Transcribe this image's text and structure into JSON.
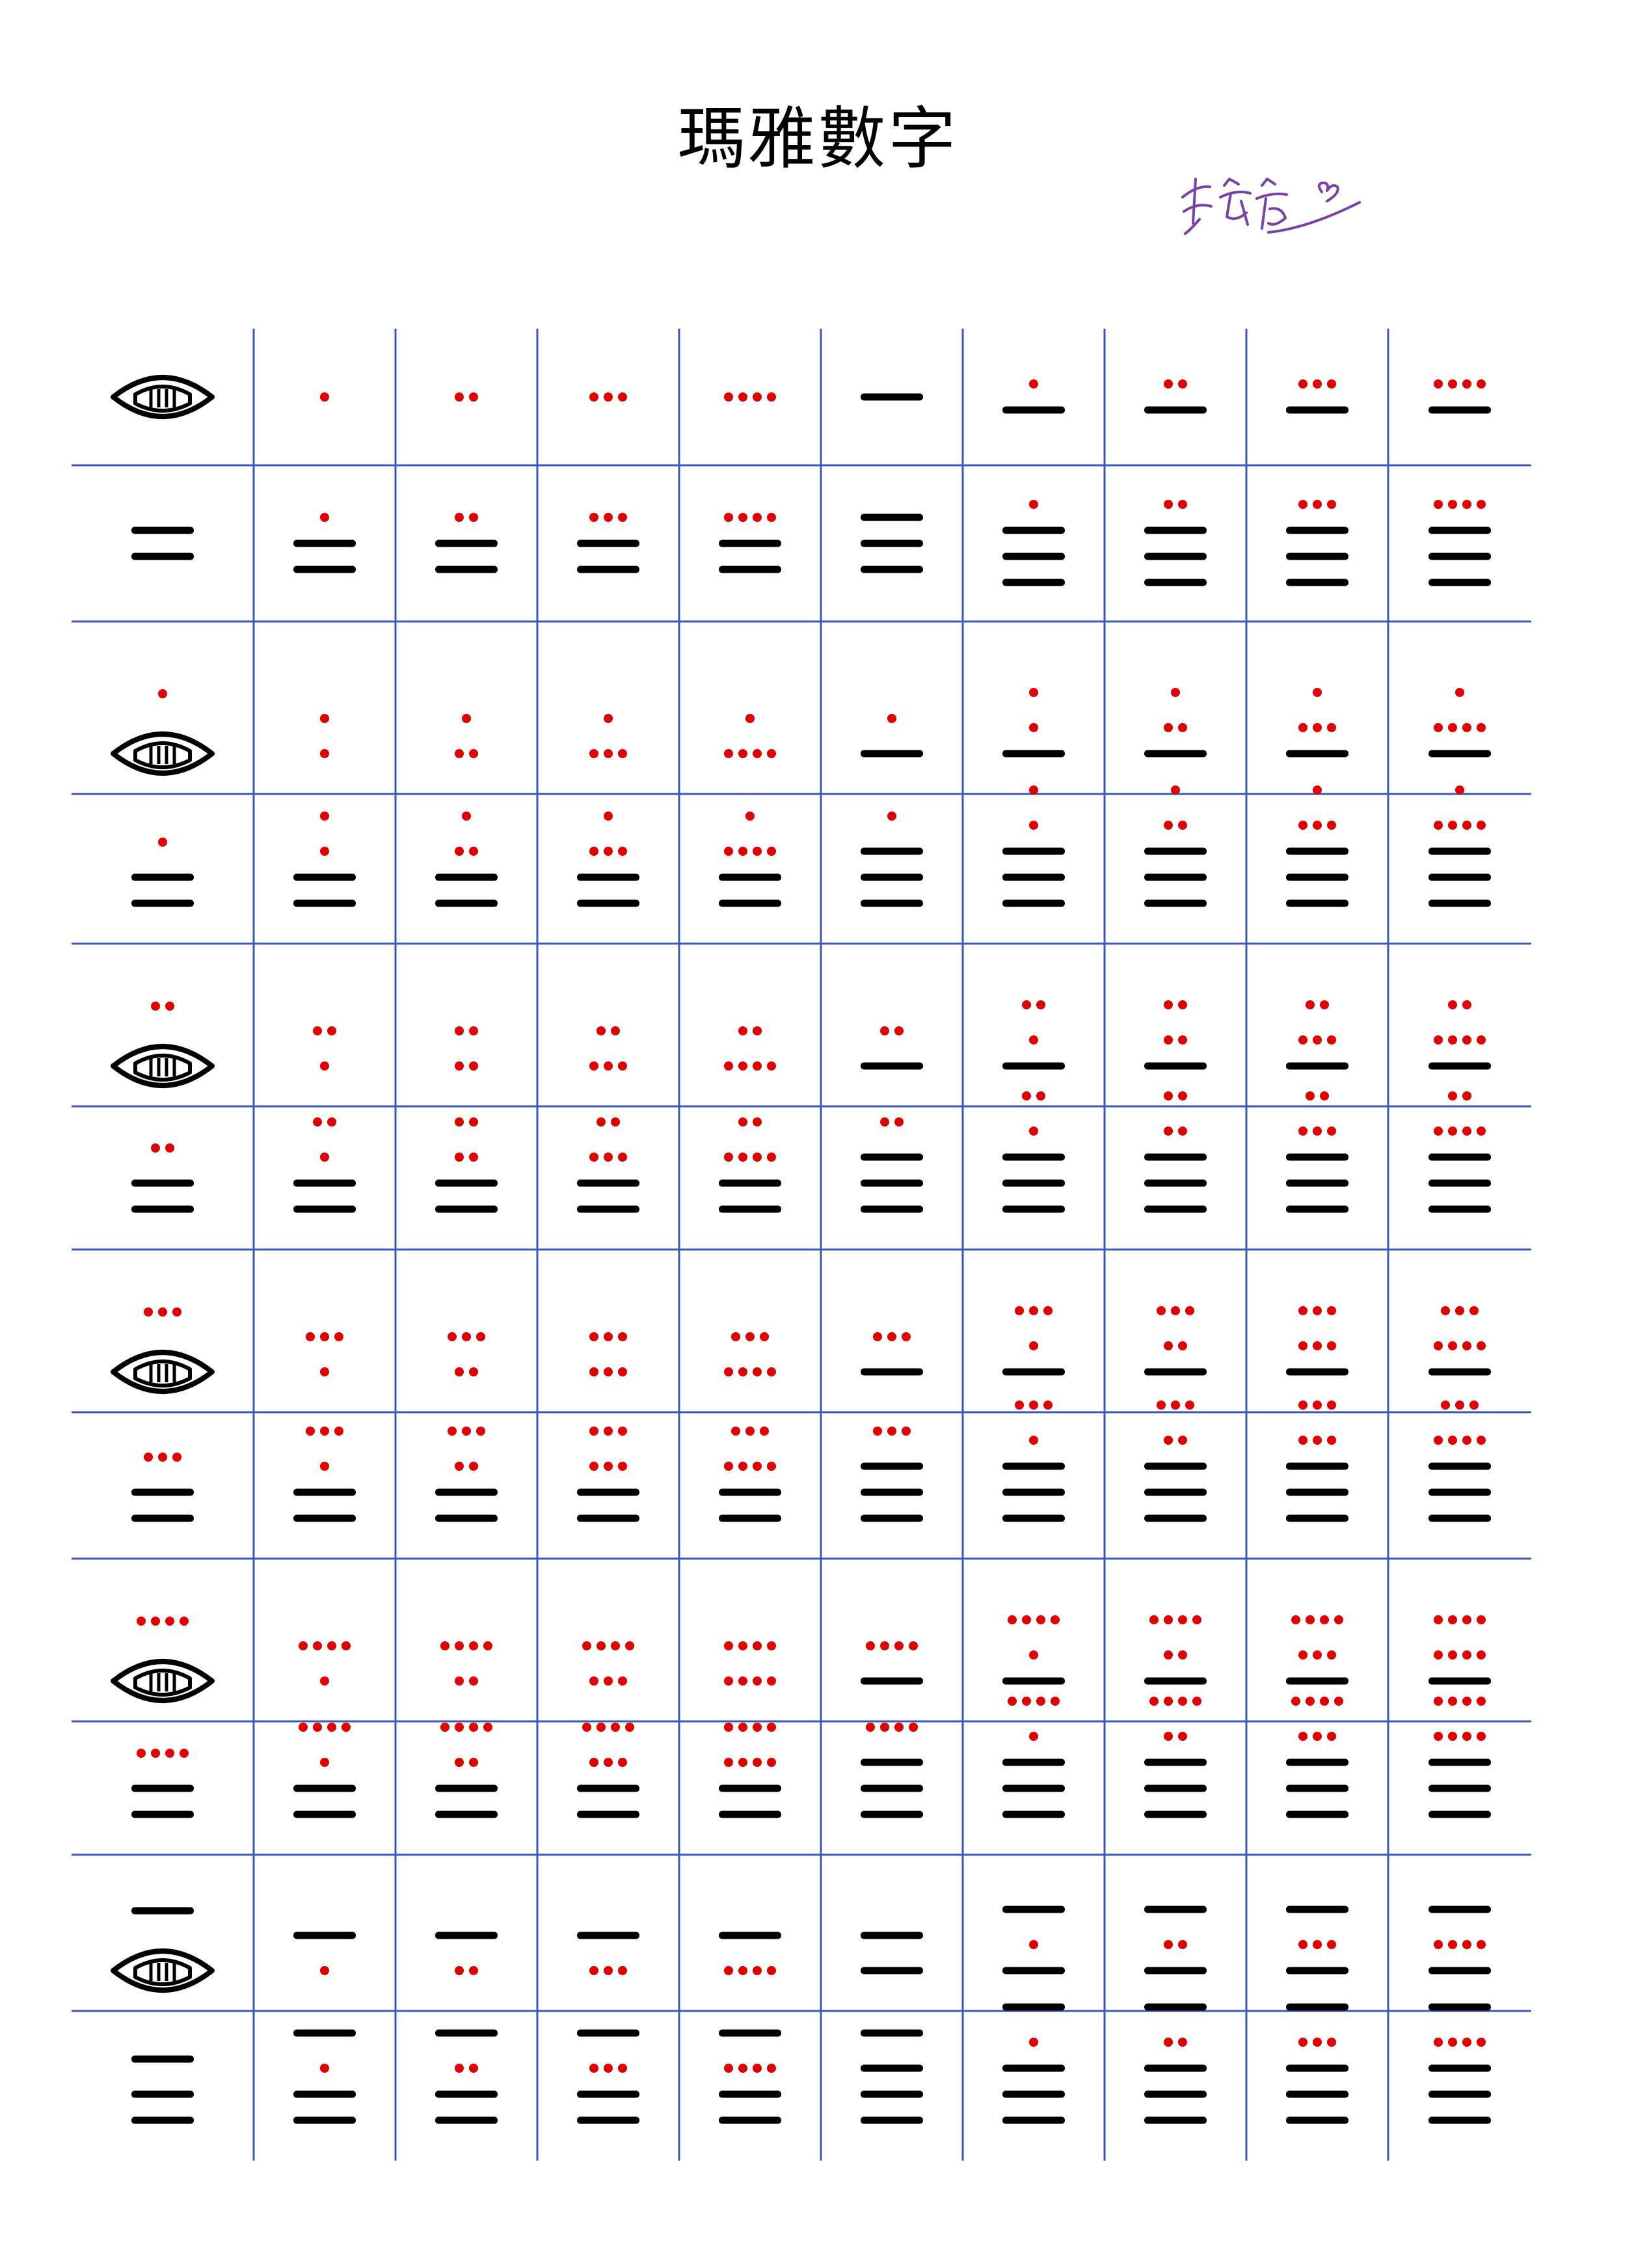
{
  "page": {
    "title": "瑪雅數字",
    "signature_text": "李宛宸",
    "colors": {
      "dot": "#e00000",
      "glyph": "#000000",
      "grid_line": "#3a57b5",
      "signature": "#7a3fa8"
    }
  },
  "grid": {
    "rows": 12,
    "columns": 10,
    "numbers": [
      [
        0,
        1,
        2,
        3,
        4,
        5,
        6,
        7,
        8,
        9
      ],
      [
        10,
        11,
        12,
        13,
        14,
        15,
        16,
        17,
        18,
        19
      ],
      [
        20,
        21,
        22,
        23,
        24,
        25,
        26,
        27,
        28,
        29
      ],
      [
        30,
        31,
        32,
        33,
        34,
        35,
        36,
        37,
        38,
        39
      ],
      [
        40,
        41,
        42,
        43,
        44,
        45,
        46,
        47,
        48,
        49
      ],
      [
        50,
        51,
        52,
        53,
        54,
        55,
        56,
        57,
        58,
        59
      ],
      [
        60,
        61,
        62,
        63,
        64,
        65,
        66,
        67,
        68,
        69
      ],
      [
        70,
        71,
        72,
        73,
        74,
        75,
        76,
        77,
        78,
        79
      ],
      [
        80,
        81,
        82,
        83,
        84,
        85,
        86,
        87,
        88,
        89
      ],
      [
        90,
        91,
        92,
        93,
        94,
        95,
        96,
        97,
        98,
        99
      ],
      [
        100,
        101,
        102,
        103,
        104,
        105,
        106,
        107,
        108,
        109
      ],
      [
        110,
        111,
        112,
        113,
        114,
        115,
        116,
        117,
        118,
        119
      ]
    ]
  }
}
